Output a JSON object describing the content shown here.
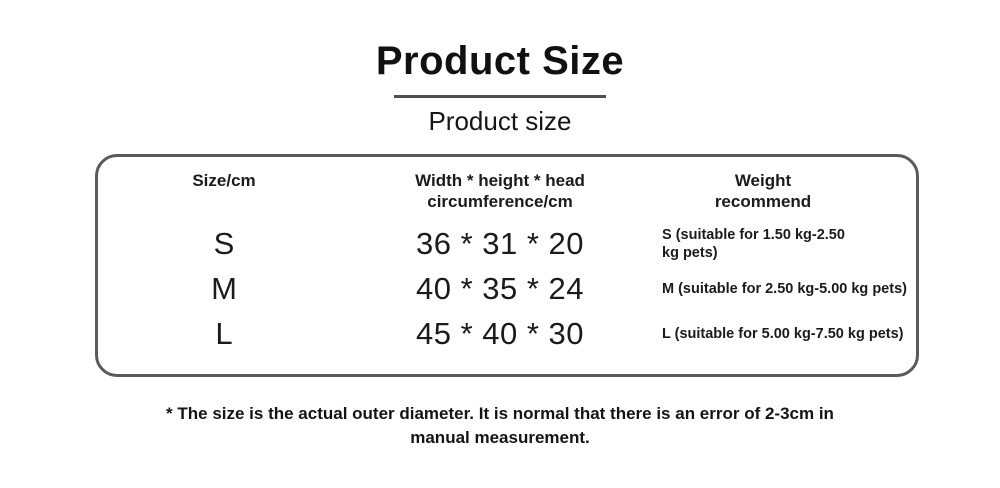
{
  "header": {
    "title": "Product Size",
    "subtitle": "Product size"
  },
  "size_table": {
    "columns": [
      "Size/cm",
      "Width * height * head\ncircumference/cm",
      "Weight\nrecommend"
    ],
    "rows": [
      {
        "size": "S",
        "dimensions": "36 * 31 * 20",
        "weight_recommend": "S (suitable for 1.50 kg-2.50\nkg pets)"
      },
      {
        "size": "M",
        "dimensions": "40 * 35 * 24",
        "weight_recommend": "M (suitable for 2.50 kg-5.00 kg pets)"
      },
      {
        "size": "L",
        "dimensions": "45 * 40 * 30",
        "weight_recommend": "L (suitable for 5.00 kg-7.50 kg pets)"
      }
    ]
  },
  "footer": {
    "note": "* The size is the actual outer diameter. It is normal that there is an error of 2-3cm in\nmanual measurement."
  },
  "colors": {
    "text": "#1a1a1a",
    "box_border": "#595a5c",
    "title_underline": "#4f4f4f"
  }
}
